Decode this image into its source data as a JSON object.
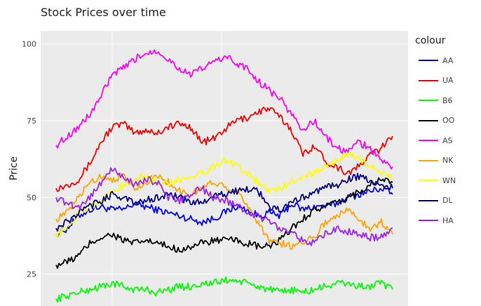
{
  "title": "Stock Prices over time",
  "chart_data": {
    "type": "line",
    "title": "Stock Prices over time",
    "xlabel": "",
    "ylabel": "Price",
    "ylim": [
      16,
      102
    ],
    "yticks": [
      25,
      50,
      75,
      100
    ],
    "xlim": [
      0,
      450
    ],
    "grid": true,
    "legend_title": "colour",
    "legend_position": "right",
    "series": [
      {
        "name": "AA",
        "color": "#0000FF",
        "values": [
          38,
          40,
          44,
          46,
          47,
          46,
          46,
          48,
          47,
          46,
          45,
          44,
          43,
          42,
          43,
          45,
          47,
          46,
          44,
          45,
          44,
          48,
          46,
          47,
          47,
          48,
          50,
          51,
          52,
          53,
          51
        ]
      },
      {
        "name": "UA",
        "color": "#FF0000",
        "values": [
          53,
          54,
          56,
          61,
          68,
          73,
          74,
          71,
          72,
          71,
          73,
          74,
          73,
          68,
          69,
          72,
          75,
          76,
          78,
          79,
          76,
          72,
          64,
          67,
          62,
          60,
          58,
          60,
          64,
          66,
          70
        ]
      },
      {
        "name": "B6",
        "color": "#00FF00",
        "values": [
          17,
          18,
          19,
          20,
          21,
          22,
          21,
          20,
          20,
          19,
          20,
          21,
          21,
          22,
          22,
          23,
          23,
          22,
          21,
          20,
          19,
          20,
          19,
          20,
          21,
          22,
          22,
          21,
          21,
          22,
          20
        ]
      },
      {
        "name": "OO",
        "color": "#000000",
        "values": [
          28,
          29,
          31,
          35,
          37,
          38,
          36,
          35,
          36,
          35,
          34,
          33,
          34,
          35,
          36,
          36,
          36,
          35,
          34,
          34,
          36,
          40,
          43,
          46,
          47,
          48,
          50,
          52,
          54,
          56,
          55
        ]
      },
      {
        "name": "AS",
        "color": "#FF00FF",
        "values": [
          67,
          70,
          73,
          77,
          83,
          90,
          92,
          95,
          97,
          98,
          95,
          92,
          90,
          92,
          94,
          96,
          94,
          92,
          88,
          85,
          82,
          77,
          72,
          75,
          70,
          66,
          65,
          68,
          66,
          62,
          60
        ]
      },
      {
        "name": "NK",
        "color": "#FFA500",
        "values": [
          43,
          45,
          50,
          55,
          57,
          56,
          57,
          53,
          55,
          57,
          55,
          52,
          51,
          53,
          55,
          54,
          52,
          48,
          42,
          36,
          35,
          34,
          36,
          37,
          42,
          44,
          46,
          43,
          40,
          42,
          38
        ]
      },
      {
        "name": "WN",
        "color": "#FFFF00",
        "values": [
          38,
          40,
          45,
          47,
          49,
          52,
          54,
          56,
          57,
          55,
          54,
          56,
          57,
          58,
          60,
          62,
          61,
          58,
          55,
          52,
          53,
          55,
          57,
          58,
          60,
          62,
          64,
          63,
          60,
          58,
          56
        ]
      },
      {
        "name": "DL",
        "color": "#00008B",
        "values": [
          40,
          42,
          45,
          47,
          49,
          51,
          50,
          48,
          49,
          50,
          51,
          50,
          48,
          49,
          50,
          51,
          52,
          53,
          52,
          47,
          46,
          48,
          50,
          52,
          53,
          54,
          56,
          57,
          55,
          54,
          53
        ]
      },
      {
        "name": "HA",
        "color": "#A020F0",
        "values": [
          50,
          48,
          47,
          50,
          55,
          59,
          57,
          54,
          56,
          55,
          50,
          49,
          51,
          53,
          50,
          49,
          48,
          45,
          44,
          42,
          40,
          39,
          36,
          35,
          38,
          40,
          39,
          38,
          37,
          37,
          40
        ]
      }
    ]
  }
}
